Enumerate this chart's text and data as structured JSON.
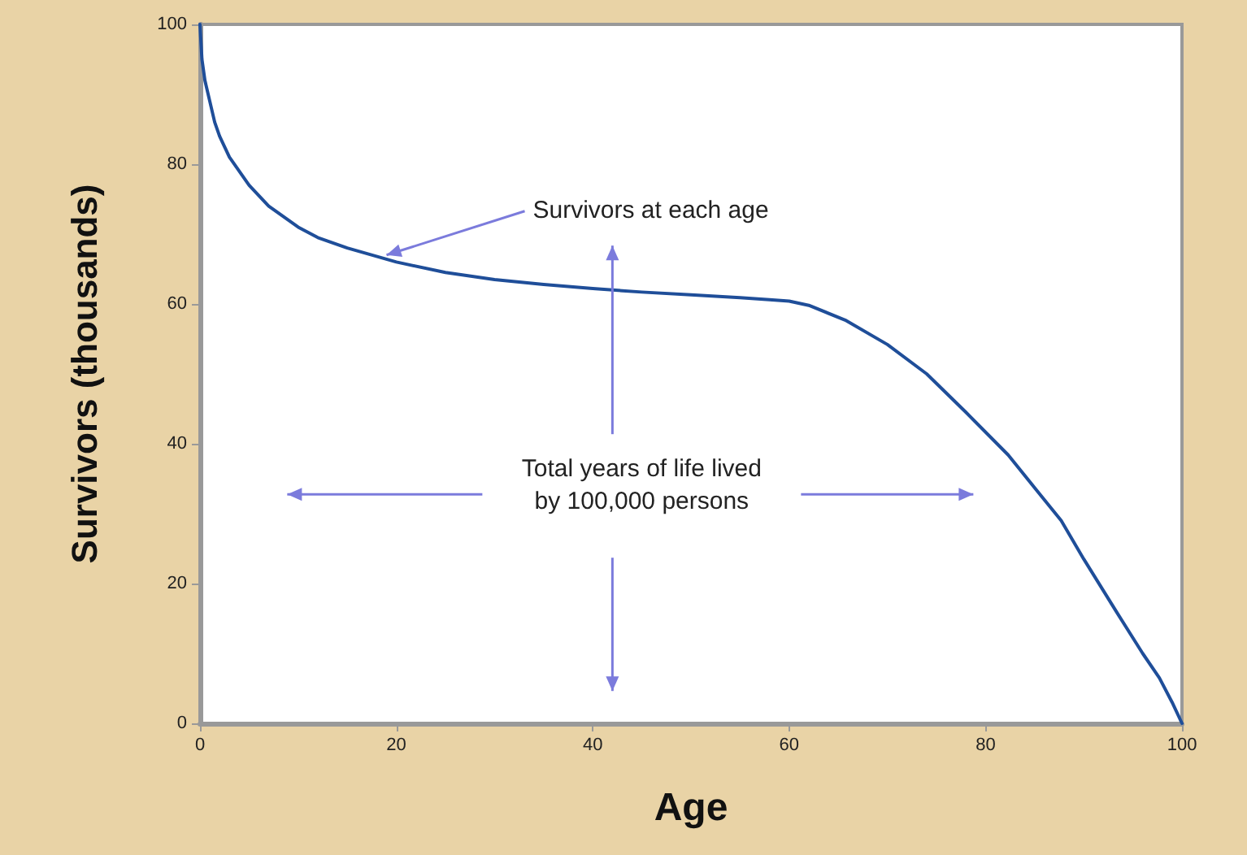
{
  "chart_data": {
    "type": "line",
    "xlabel": "Age",
    "ylabel": "Survivors (thousands)",
    "x": [
      0,
      0.2,
      0.5,
      1,
      1.5,
      2,
      3,
      4,
      5,
      7,
      10,
      12,
      15,
      20,
      25,
      30,
      35,
      40,
      45,
      50,
      55,
      58,
      60,
      62,
      65.7,
      70,
      74,
      78,
      82.3,
      85,
      87.7,
      90,
      93.4,
      96,
      97.7,
      99,
      100
    ],
    "series": [
      {
        "color": "#1f4e99",
        "values": [
          100,
          95,
          92,
          89,
          86,
          84,
          81,
          79,
          77,
          74,
          71,
          69.5,
          68,
          66,
          64.5,
          63.5,
          62.8,
          62.2,
          61.7,
          61.3,
          60.9,
          60.6,
          60.4,
          59.8,
          57.7,
          54.2,
          50,
          44.5,
          38.4,
          33.7,
          29,
          23.5,
          15.8,
          10,
          6.5,
          3,
          0
        ]
      }
    ],
    "xlim": [
      0,
      100
    ],
    "xticks": [
      0,
      20,
      40,
      60,
      80,
      100
    ],
    "ylim": [
      0,
      100
    ],
    "yticks": [
      0,
      20,
      40,
      60,
      80,
      100
    ],
    "grid": false,
    "marker": "none",
    "line_style": "solid",
    "annotations": [
      {
        "text": "Survivors at each age",
        "x": 19,
        "y": 67
      },
      "Total years of life lived\nby 100,000 persons"
    ]
  }
}
